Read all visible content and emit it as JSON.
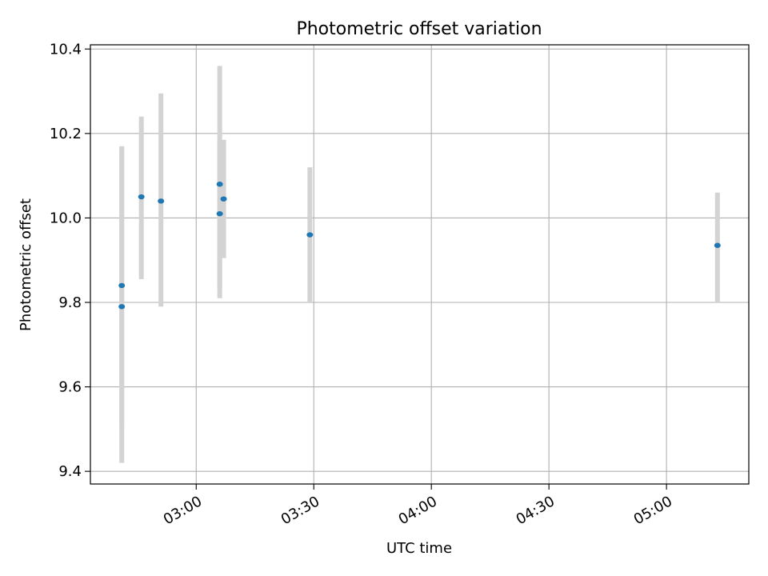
{
  "chart_data": {
    "type": "scatter",
    "title": "Photometric offset variation",
    "xlabel": "UTC time",
    "ylabel": "Photometric offset",
    "xlim": [
      "02:33",
      "05:21"
    ],
    "ylim": [
      9.37,
      10.41
    ],
    "grid": true,
    "legend": "none",
    "x_ticks": [
      "03:00",
      "03:30",
      "04:00",
      "04:30",
      "05:00"
    ],
    "y_ticks": [
      9.4,
      9.6,
      9.8,
      10.0,
      10.2,
      10.4
    ],
    "y_tick_labels": [
      "9.4",
      "9.6",
      "9.8",
      "10.0",
      "10.2",
      "10.4"
    ],
    "series": [
      {
        "x": [
          "02:41",
          "02:41",
          "02:46",
          "02:51",
          "03:06",
          "03:06",
          "03:07",
          "03:29",
          "05:13"
        ],
        "y": [
          9.79,
          9.84,
          10.05,
          10.04,
          10.08,
          10.01,
          10.045,
          9.96,
          9.935
        ],
        "err_low": [
          9.42,
          9.505,
          9.855,
          9.79,
          9.81,
          9.835,
          9.905,
          9.8,
          9.8
        ],
        "err_high": [
          10.165,
          10.17,
          10.24,
          10.295,
          10.36,
          10.185,
          10.185,
          10.12,
          10.06
        ],
        "color": "#1f77b4",
        "error_color": "#d3d3d3"
      }
    ]
  }
}
